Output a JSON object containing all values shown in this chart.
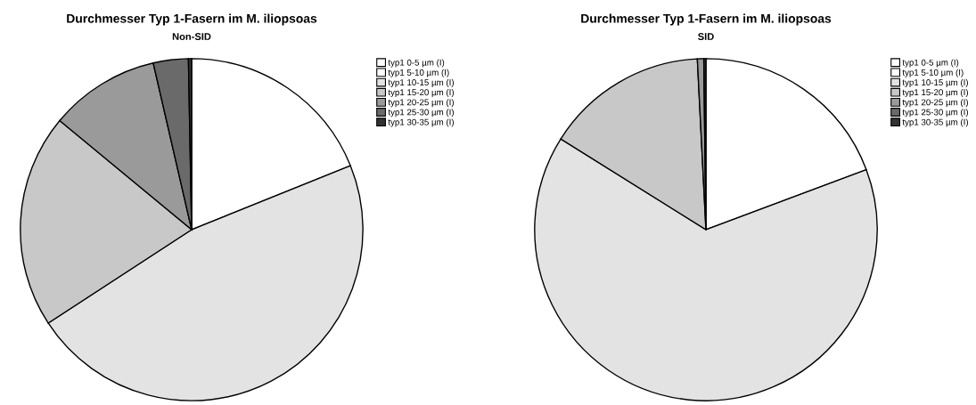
{
  "chart_data": [
    {
      "type": "pie",
      "title": "Durchmesser Typ 1-Fasern im M. iliopsoas",
      "subtitle": "Non-SID",
      "legend": "top right",
      "categories": [
        "typ1 0-5 µm (I)",
        "typ1 5-10 µm (I)",
        "typ1 10-15 µm (I)",
        "typ1 15-20 µm (I)",
        "typ1 20-25 µm (I)",
        "typ1 25-30 µm (I)",
        "typ1 30-35 µm (I)"
      ],
      "values": [
        0,
        18.9,
        46.9,
        20.2,
        10.4,
        3.3,
        0.3
      ],
      "colors": [
        "#ffffff",
        "#ffffff",
        "#e3e3e3",
        "#c8c8c8",
        "#9a9a9a",
        "#6a6a6a",
        "#333333"
      ]
    },
    {
      "type": "pie",
      "title": "Durchmesser Typ 1-Fasern im M. iliopsoas",
      "subtitle": "SID",
      "legend": "top right",
      "categories": [
        "typ1 0-5 µm (I)",
        "typ1 5-10 µm (I)",
        "typ1 10-15 µm (I)",
        "typ1 15-20 µm (I)",
        "typ1 20-25 µm (I)",
        "typ1 25-30 µm (I)",
        "typ1 30-35 µm (I)"
      ],
      "values": [
        0,
        19.3,
        64.6,
        15.3,
        0.6,
        null,
        0.2
      ],
      "colors": [
        "#ffffff",
        "#ffffff",
        "#e3e3e3",
        "#c8c8c8",
        "#9a9a9a",
        "#6a6a6a",
        "#333333"
      ]
    }
  ]
}
